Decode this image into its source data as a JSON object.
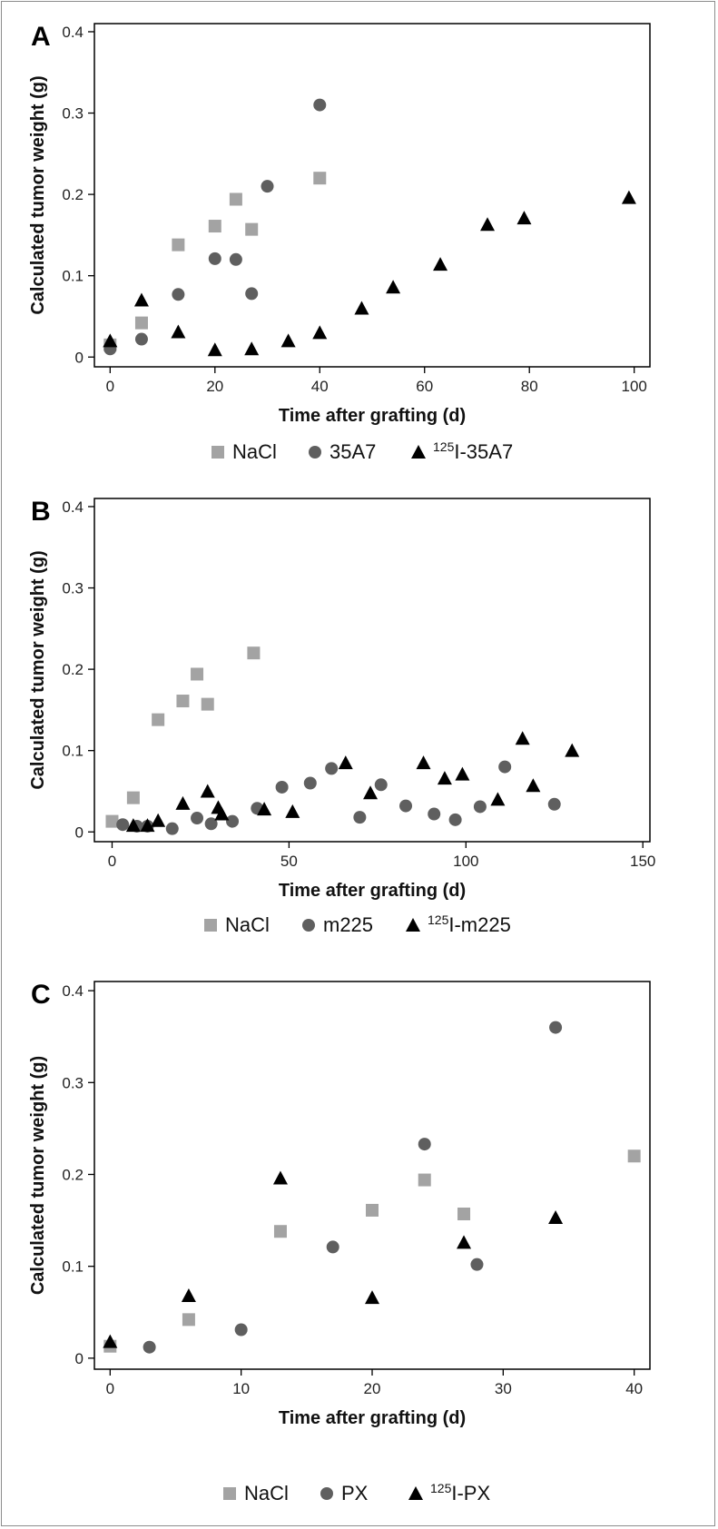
{
  "colors": {
    "nacl": "#a3a3a3",
    "mab": "#5f5f5f",
    "rit": "#000000",
    "frame": "#8c8c8c"
  },
  "chart_data": [
    {
      "type": "scatter",
      "panel_label": "A",
      "ylabel": "Calculated tumor weight (g)",
      "xlabel": "Time  after grafting (d)",
      "xlim": [
        -3,
        103
      ],
      "ylim": [
        -0.012,
        0.41
      ],
      "xticks": [
        0,
        20,
        40,
        60,
        80,
        100
      ],
      "yticks": [
        0,
        0.1,
        0.2,
        0.3,
        0.4
      ],
      "ytick_labels": [
        "0",
        "0.1",
        "0.2",
        "0.3",
        "0.4"
      ],
      "legend_position": "bottom",
      "series": [
        {
          "name": "NaCl",
          "marker": "square",
          "color": "#a3a3a3",
          "points": [
            [
              0,
              0.015
            ],
            [
              6,
              0.042
            ],
            [
              13,
              0.138
            ],
            [
              20,
              0.161
            ],
            [
              24,
              0.194
            ],
            [
              27,
              0.157
            ],
            [
              40,
              0.22
            ]
          ]
        },
        {
          "name": "35A7",
          "marker": "circle",
          "color": "#5f5f5f",
          "points": [
            [
              0,
              0.01
            ],
            [
              6,
              0.022
            ],
            [
              13,
              0.077
            ],
            [
              20,
              0.121
            ],
            [
              24,
              0.12
            ],
            [
              27,
              0.078
            ],
            [
              30,
              0.21
            ],
            [
              40,
              0.31
            ]
          ]
        },
        {
          "name_sup": "125",
          "name": "I-35A7",
          "marker": "triangle",
          "color": "#000000",
          "points": [
            [
              0,
              0.02
            ],
            [
              6,
              0.07
            ],
            [
              13,
              0.031
            ],
            [
              20,
              0.009
            ],
            [
              27,
              0.01
            ],
            [
              34,
              0.02
            ],
            [
              40,
              0.03
            ],
            [
              48,
              0.06
            ],
            [
              54,
              0.086
            ],
            [
              63,
              0.114
            ],
            [
              72,
              0.163
            ],
            [
              79,
              0.171
            ],
            [
              99,
              0.196
            ]
          ]
        }
      ]
    },
    {
      "type": "scatter",
      "panel_label": "B",
      "ylabel": "Calculated tumor weight (g)",
      "xlabel": "Time after grafting (d)",
      "xlim": [
        -5,
        152
      ],
      "ylim": [
        -0.012,
        0.41
      ],
      "xticks": [
        0,
        50,
        100,
        150
      ],
      "yticks": [
        0,
        0.1,
        0.2,
        0.3,
        0.4
      ],
      "ytick_labels": [
        "0",
        "0.1",
        "0.2",
        "0.3",
        "0.4"
      ],
      "legend_position": "bottom",
      "series": [
        {
          "name": "NaCl",
          "marker": "square",
          "color": "#a3a3a3",
          "points": [
            [
              0,
              0.013
            ],
            [
              6,
              0.042
            ],
            [
              13,
              0.138
            ],
            [
              20,
              0.161
            ],
            [
              24,
              0.194
            ],
            [
              27,
              0.157
            ],
            [
              40,
              0.22
            ]
          ]
        },
        {
          "name": "m225",
          "marker": "circle",
          "color": "#5f5f5f",
          "points": [
            [
              3,
              0.009
            ],
            [
              7,
              0.007
            ],
            [
              10,
              0.007
            ],
            [
              17,
              0.004
            ],
            [
              24,
              0.017
            ],
            [
              28,
              0.01
            ],
            [
              34,
              0.013
            ],
            [
              41,
              0.029
            ],
            [
              48,
              0.055
            ],
            [
              56,
              0.06
            ],
            [
              62,
              0.078
            ],
            [
              70,
              0.018
            ],
            [
              76,
              0.058
            ],
            [
              83,
              0.032
            ],
            [
              91,
              0.022
            ],
            [
              97,
              0.015
            ],
            [
              104,
              0.031
            ],
            [
              111,
              0.08
            ],
            [
              125,
              0.034
            ]
          ]
        },
        {
          "name_sup": "125",
          "name": "I-m225",
          "marker": "triangle",
          "color": "#000000",
          "points": [
            [
              6,
              0.008
            ],
            [
              10,
              0.008
            ],
            [
              13,
              0.014
            ],
            [
              20,
              0.035
            ],
            [
              27,
              0.05
            ],
            [
              30,
              0.03
            ],
            [
              31,
              0.022
            ],
            [
              43,
              0.028
            ],
            [
              51,
              0.025
            ],
            [
              66,
              0.085
            ],
            [
              73,
              0.048
            ],
            [
              88,
              0.085
            ],
            [
              94,
              0.066
            ],
            [
              99,
              0.071
            ],
            [
              109,
              0.04
            ],
            [
              116,
              0.115
            ],
            [
              119,
              0.057
            ],
            [
              130,
              0.1
            ]
          ]
        }
      ]
    },
    {
      "type": "scatter",
      "panel_label": "C",
      "ylabel": "Calculated tumor weight (g)",
      "xlabel": "Time after grafting (d)",
      "xlim": [
        -1.2,
        41.2
      ],
      "ylim": [
        -0.012,
        0.41
      ],
      "xticks": [
        0,
        10,
        20,
        30,
        40
      ],
      "yticks": [
        0,
        0.1,
        0.2,
        0.3,
        0.4
      ],
      "ytick_labels": [
        "0",
        "0.1",
        "0.2",
        "0.3",
        "0.4"
      ],
      "legend_position": "bottom",
      "series": [
        {
          "name": "NaCl",
          "marker": "square",
          "color": "#a3a3a3",
          "points": [
            [
              0,
              0.013
            ],
            [
              6,
              0.042
            ],
            [
              13,
              0.138
            ],
            [
              20,
              0.161
            ],
            [
              24,
              0.194
            ],
            [
              27,
              0.157
            ],
            [
              40,
              0.22
            ]
          ]
        },
        {
          "name": "PX",
          "marker": "circle",
          "color": "#5f5f5f",
          "points": [
            [
              3,
              0.012
            ],
            [
              10,
              0.031
            ],
            [
              17,
              0.121
            ],
            [
              24,
              0.233
            ],
            [
              28,
              0.102
            ],
            [
              34,
              0.36
            ]
          ]
        },
        {
          "name_sup": "125",
          "name": "I-PX",
          "marker": "triangle",
          "color": "#000000",
          "points": [
            [
              0,
              0.018
            ],
            [
              6,
              0.068
            ],
            [
              13,
              0.196
            ],
            [
              20,
              0.066
            ],
            [
              27,
              0.126
            ],
            [
              34,
              0.153
            ]
          ]
        }
      ]
    }
  ]
}
